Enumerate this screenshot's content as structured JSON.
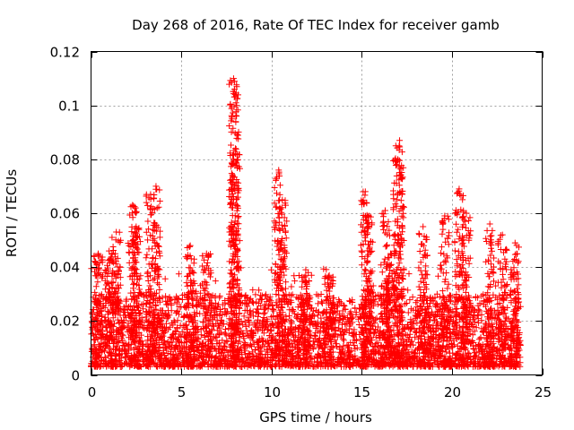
{
  "chart_data": {
    "type": "scatter",
    "title": "Day 268 of 2016, Rate Of TEC Index for receiver gamb",
    "xlabel": "GPS time / hours",
    "ylabel": "ROTI / TECUs",
    "xlim": [
      0,
      25
    ],
    "ylim": [
      0,
      0.12
    ],
    "xticks": [
      0,
      5,
      10,
      15,
      20,
      25
    ],
    "xtick_labels": [
      "0",
      "5",
      "10",
      "15",
      "20",
      "25"
    ],
    "yticks": [
      0,
      0.02,
      0.04,
      0.06,
      0.08,
      0.1,
      0.12
    ],
    "ytick_labels": [
      "0",
      "0.02",
      "0.04",
      "0.06",
      "0.08",
      "0.1",
      "0.12"
    ],
    "grid": true,
    "marker": "plus",
    "color": "#ff0000",
    "series": [
      {
        "name": "ROTI",
        "baseline_band": [
          0.003,
          0.03
        ],
        "x_range": [
          0,
          23.8
        ],
        "peaks": [
          {
            "x": 0.4,
            "y": 0.045
          },
          {
            "x": 1.0,
            "y": 0.046
          },
          {
            "x": 1.4,
            "y": 0.053
          },
          {
            "x": 2.3,
            "y": 0.063
          },
          {
            "x": 2.5,
            "y": 0.055
          },
          {
            "x": 3.3,
            "y": 0.067
          },
          {
            "x": 3.6,
            "y": 0.07
          },
          {
            "x": 5.5,
            "y": 0.048
          },
          {
            "x": 6.4,
            "y": 0.045
          },
          {
            "x": 7.9,
            "y": 0.11
          },
          {
            "x": 7.95,
            "y": 0.106
          },
          {
            "x": 8.0,
            "y": 0.084
          },
          {
            "x": 10.4,
            "y": 0.076
          },
          {
            "x": 10.6,
            "y": 0.065
          },
          {
            "x": 11.9,
            "y": 0.039
          },
          {
            "x": 13.2,
            "y": 0.037
          },
          {
            "x": 15.2,
            "y": 0.068
          },
          {
            "x": 15.4,
            "y": 0.059
          },
          {
            "x": 16.3,
            "y": 0.061
          },
          {
            "x": 16.6,
            "y": 0.045
          },
          {
            "x": 17.1,
            "y": 0.087
          },
          {
            "x": 17.0,
            "y": 0.08
          },
          {
            "x": 18.4,
            "y": 0.055
          },
          {
            "x": 19.6,
            "y": 0.059
          },
          {
            "x": 20.4,
            "y": 0.069
          },
          {
            "x": 20.8,
            "y": 0.06
          },
          {
            "x": 22.1,
            "y": 0.056
          },
          {
            "x": 22.8,
            "y": 0.052
          },
          {
            "x": 23.5,
            "y": 0.049
          }
        ]
      }
    ]
  }
}
